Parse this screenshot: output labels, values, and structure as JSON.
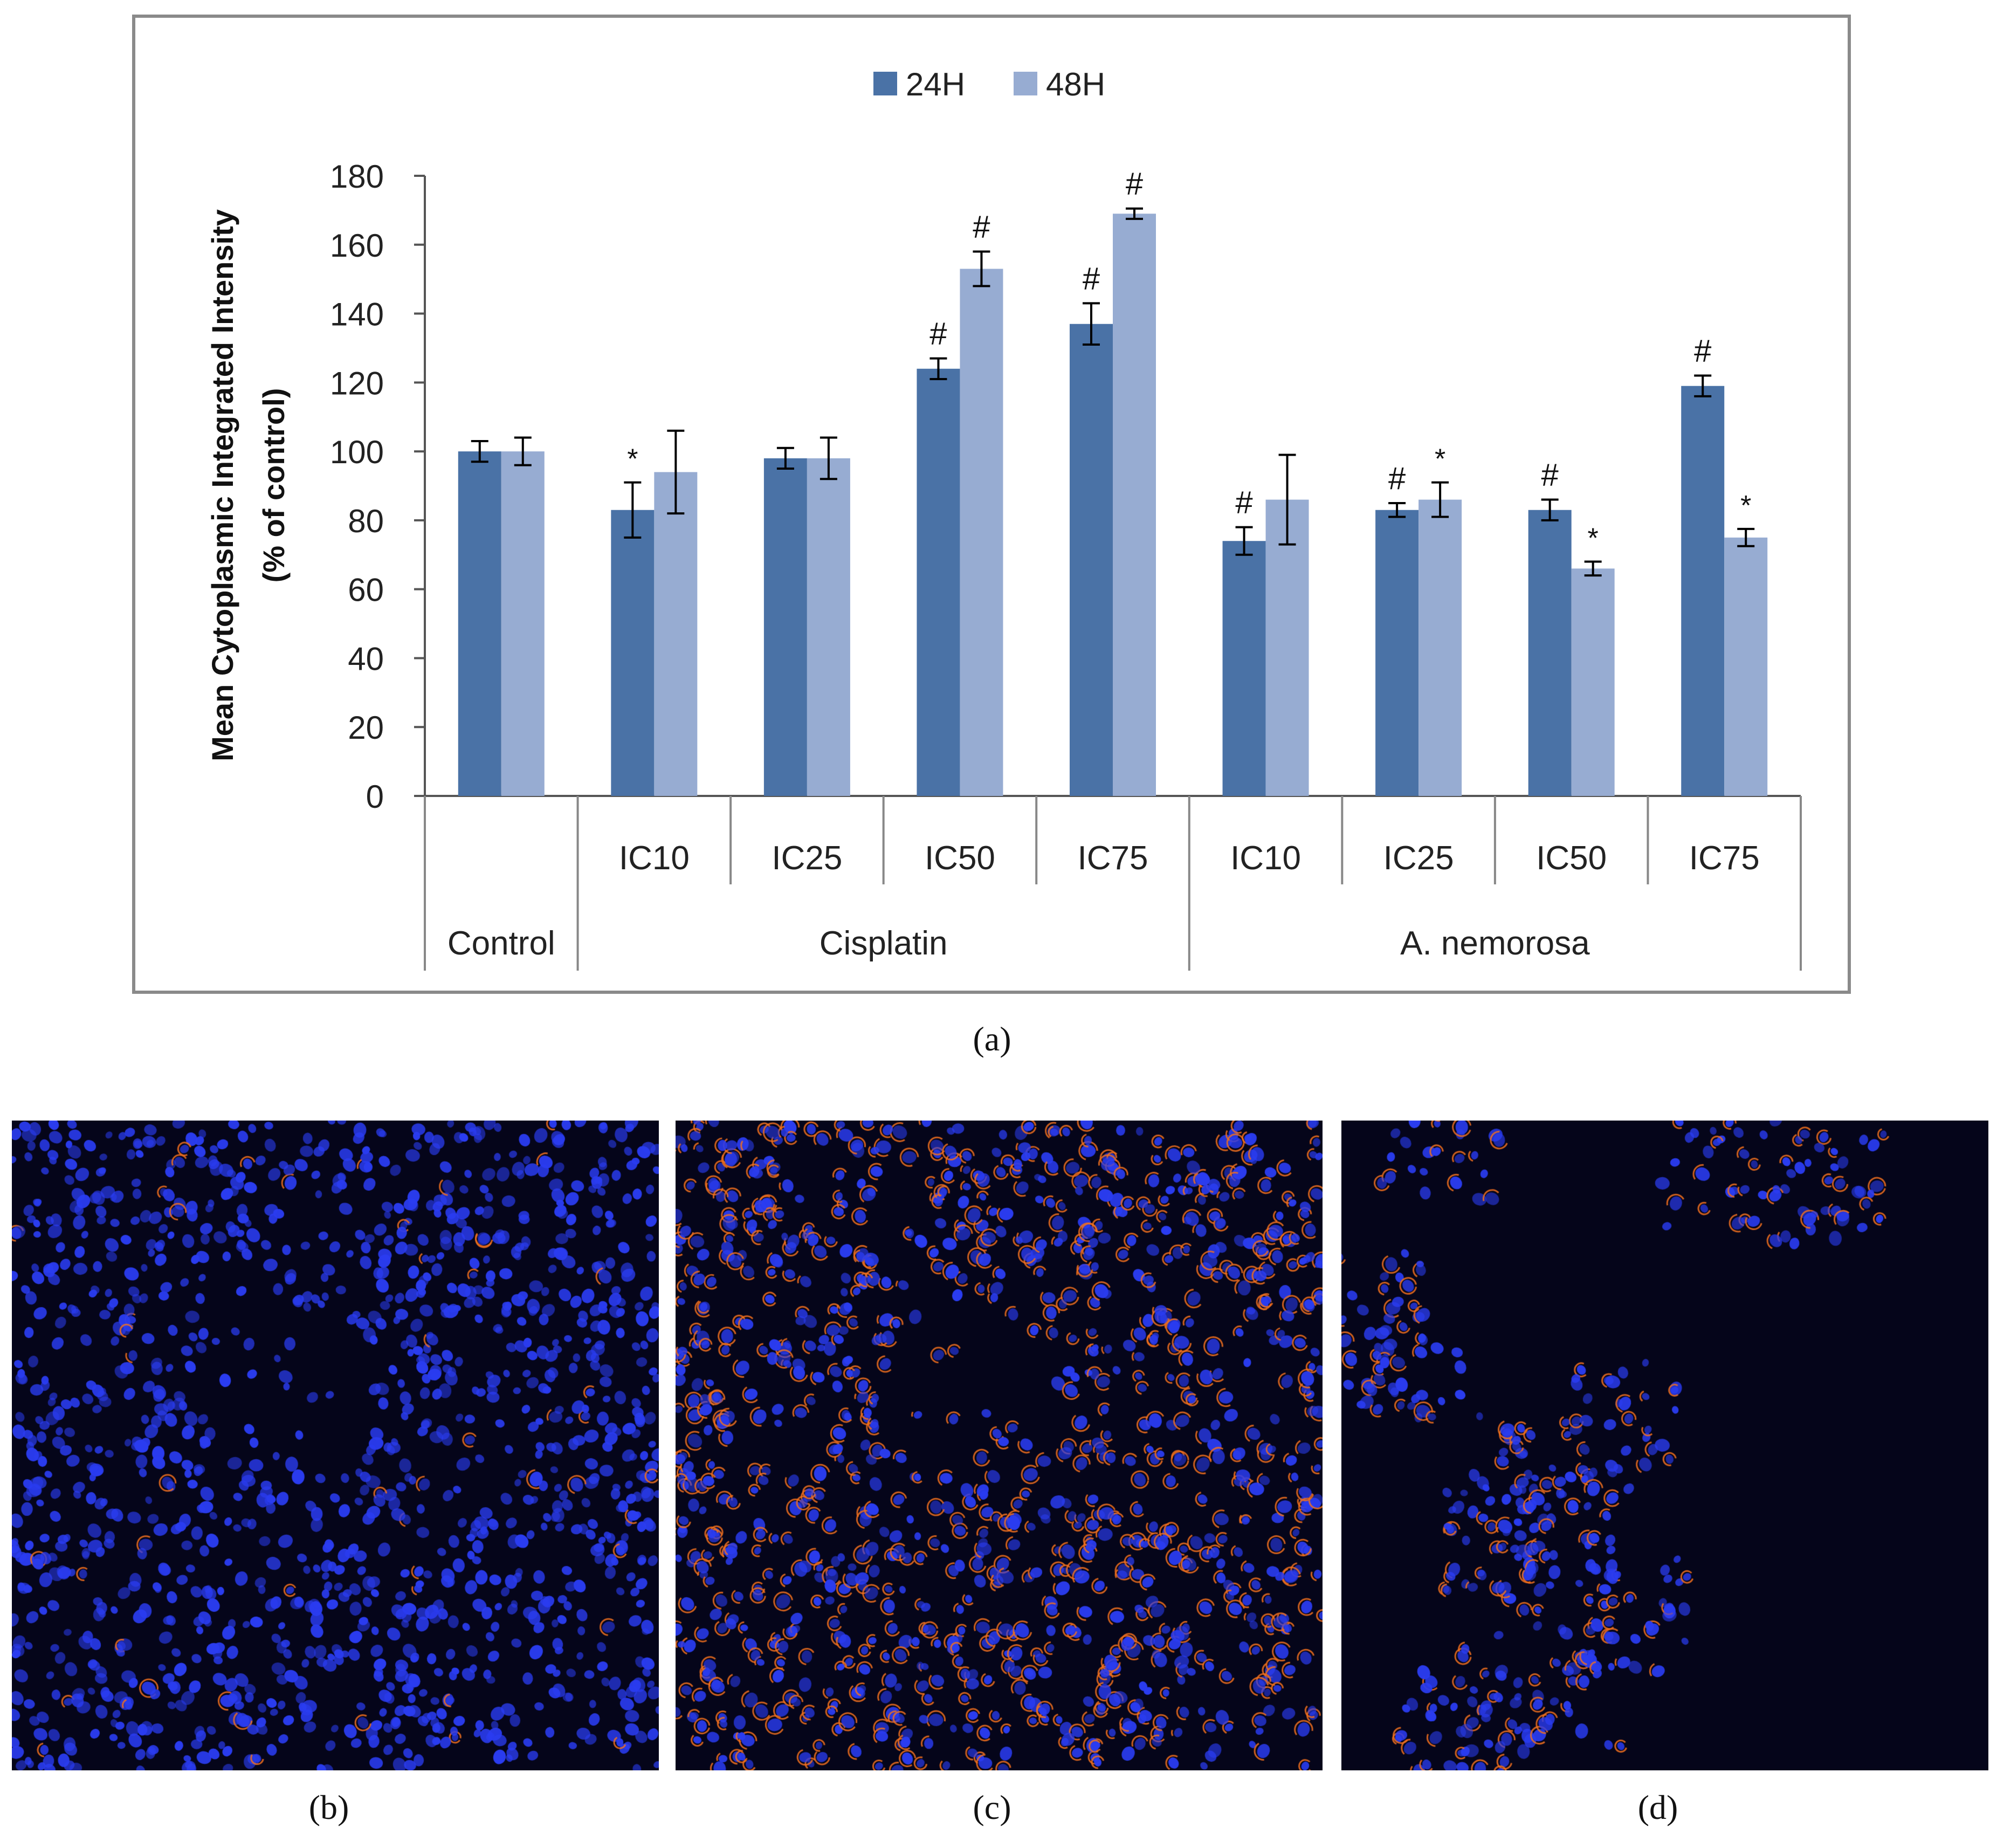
{
  "chart_data": {
    "type": "bar",
    "title": "",
    "ylabel_line1": "Mean Cytoplasmic Integrated Intensity",
    "ylabel_line2": "(% of control)",
    "xlabel": "",
    "ylim": [
      0,
      180
    ],
    "yticks": [
      0,
      20,
      40,
      60,
      80,
      100,
      120,
      140,
      160,
      180
    ],
    "legend": {
      "placement": "top-center",
      "entries": [
        "24H",
        "48H"
      ]
    },
    "categories": [
      "Control",
      "IC10",
      "IC25",
      "IC50",
      "IC75",
      "IC10",
      "IC25",
      "IC50",
      "IC75"
    ],
    "groups": [
      {
        "label": "Control",
        "from": 0,
        "to": 0
      },
      {
        "label": "Cisplatin",
        "from": 1,
        "to": 4
      },
      {
        "label": "A. nemorosa",
        "from": 5,
        "to": 8
      }
    ],
    "series": [
      {
        "name": "24H",
        "color": "#4a72a6",
        "values": [
          100,
          83,
          98,
          124,
          137,
          74,
          83,
          83,
          119
        ],
        "errors": [
          3,
          8,
          3,
          3,
          6,
          4,
          2,
          3,
          3
        ],
        "annotations": [
          "",
          "*",
          "",
          "#",
          "#",
          "#",
          "#",
          "#",
          "#"
        ]
      },
      {
        "name": "48H",
        "color": "#97acd2",
        "values": [
          100,
          94,
          98,
          153,
          169,
          86,
          86,
          66,
          75
        ],
        "errors": [
          4,
          12,
          6,
          5,
          1.5,
          13,
          5,
          2,
          2.5
        ],
        "annotations": [
          "",
          "",
          "",
          "#",
          "#",
          "",
          "*",
          "*",
          "*"
        ]
      }
    ]
  },
  "panels": {
    "a": "(a)",
    "b": "(b)",
    "c": "(c)",
    "d": "(d)"
  },
  "colors": {
    "nuclei": "#2a3cf0",
    "stain": "#f07020",
    "background": "#05051a"
  }
}
